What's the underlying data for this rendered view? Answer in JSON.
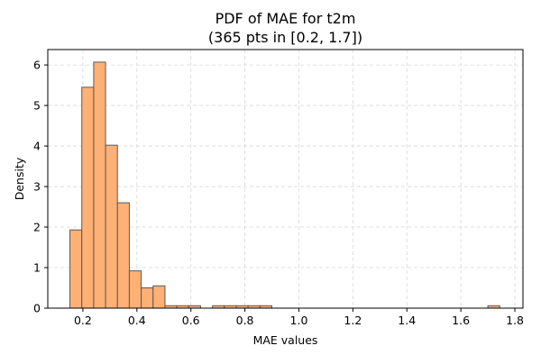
{
  "chart_data": {
    "type": "bar",
    "title": "PDF of MAE for t2m",
    "subtitle": "(365 pts in [0.2, 1.7])",
    "xlabel": "MAE values",
    "ylabel": "Density",
    "xlim": [
      0.07,
      1.83
    ],
    "ylim": [
      0,
      6.38
    ],
    "xticks": [
      0.2,
      0.4,
      0.6,
      0.8,
      1.0,
      1.2,
      1.4,
      1.6,
      1.8
    ],
    "xtick_labels": [
      "0.2",
      "0.4",
      "0.6",
      "0.8",
      "1.0",
      "1.2",
      "1.4",
      "1.6",
      "1.8"
    ],
    "yticks": [
      0,
      1,
      2,
      3,
      4,
      5,
      6
    ],
    "ytick_labels": [
      "0",
      "1",
      "2",
      "3",
      "4",
      "5",
      "6"
    ],
    "grid": true,
    "bins": [
      {
        "x0": 0.152,
        "x1": 0.196,
        "density": 1.93
      },
      {
        "x0": 0.196,
        "x1": 0.24,
        "density": 5.45
      },
      {
        "x0": 0.24,
        "x1": 0.284,
        "density": 6.07
      },
      {
        "x0": 0.284,
        "x1": 0.328,
        "density": 4.02
      },
      {
        "x0": 0.328,
        "x1": 0.372,
        "density": 2.6
      },
      {
        "x0": 0.372,
        "x1": 0.416,
        "density": 0.92
      },
      {
        "x0": 0.416,
        "x1": 0.46,
        "density": 0.5
      },
      {
        "x0": 0.46,
        "x1": 0.504,
        "density": 0.55
      },
      {
        "x0": 0.504,
        "x1": 0.548,
        "density": 0.06
      },
      {
        "x0": 0.548,
        "x1": 0.592,
        "density": 0.06
      },
      {
        "x0": 0.592,
        "x1": 0.636,
        "density": 0.06
      },
      {
        "x0": 0.68,
        "x1": 0.724,
        "density": 0.06
      },
      {
        "x0": 0.724,
        "x1": 0.768,
        "density": 0.06
      },
      {
        "x0": 0.768,
        "x1": 0.812,
        "density": 0.06
      },
      {
        "x0": 0.812,
        "x1": 0.856,
        "density": 0.06
      },
      {
        "x0": 0.856,
        "x1": 0.9,
        "density": 0.06
      },
      {
        "x0": 1.7,
        "x1": 1.744,
        "density": 0.06
      }
    ],
    "colors": {
      "bar_fill": "#ffb074",
      "bar_edge": "#5a5a5a",
      "grid": "#d9d9d9",
      "axis": "#000000"
    }
  }
}
